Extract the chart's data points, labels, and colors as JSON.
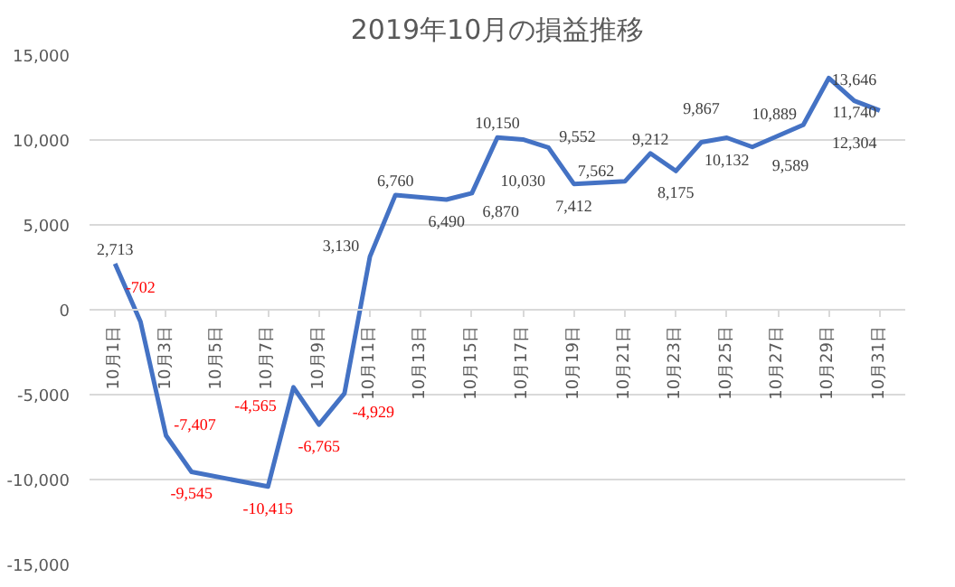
{
  "chart_data": {
    "type": "line",
    "title": "2019年10月の損益推移",
    "x": [
      "2019-10-01",
      "2019-10-02",
      "2019-10-03",
      "2019-10-04",
      "2019-10-07",
      "2019-10-08",
      "2019-10-09",
      "2019-10-10",
      "2019-10-11",
      "2019-10-12",
      "2019-10-14",
      "2019-10-15",
      "2019-10-16",
      "2019-10-17",
      "2019-10-18",
      "2019-10-19",
      "2019-10-21",
      "2019-10-22",
      "2019-10-23",
      "2019-10-24",
      "2019-10-25",
      "2019-10-26",
      "2019-10-28",
      "2019-10-29",
      "2019-10-30",
      "2019-10-31"
    ],
    "series": [
      {
        "color": "#4472c4",
        "values": [
          2713,
          -702,
          -7407,
          -9545,
          -10415,
          -4565,
          -6765,
          -4929,
          3130,
          6760,
          6490,
          6870,
          10150,
          10030,
          9552,
          7412,
          7562,
          9212,
          8175,
          9867,
          10132,
          9589,
          10889,
          13646,
          12304,
          11740
        ],
        "value_labels": [
          "2,713",
          "-702",
          "-7,407",
          "-9,545",
          "-10,415",
          "-4,565",
          "-6,765",
          "-4,929",
          "3,130",
          "6,760",
          "6,490",
          "6,870",
          "10,150",
          "10,030",
          "9,552",
          "7,412",
          "7,562",
          "9,212",
          "8,175",
          "9,867",
          "10,132",
          "9,589",
          "10,889",
          "13,646",
          "12,304",
          "11,740"
        ]
      }
    ],
    "xlim": [
      "2019-09-30",
      "2019-11-01"
    ],
    "xticks": [
      {
        "value": "2019-10-01",
        "label": "10月1日"
      },
      {
        "value": "2019-10-03",
        "label": "10月3日"
      },
      {
        "value": "2019-10-05",
        "label": "10月5日"
      },
      {
        "value": "2019-10-07",
        "label": "10月7日"
      },
      {
        "value": "2019-10-09",
        "label": "10月9日"
      },
      {
        "value": "2019-10-11",
        "label": "10月11日"
      },
      {
        "value": "2019-10-13",
        "label": "10月13日"
      },
      {
        "value": "2019-10-15",
        "label": "10月15日"
      },
      {
        "value": "2019-10-17",
        "label": "10月17日"
      },
      {
        "value": "2019-10-19",
        "label": "10月19日"
      },
      {
        "value": "2019-10-21",
        "label": "10月21日"
      },
      {
        "value": "2019-10-23",
        "label": "10月23日"
      },
      {
        "value": "2019-10-25",
        "label": "10月25日"
      },
      {
        "value": "2019-10-27",
        "label": "10月27日"
      },
      {
        "value": "2019-10-29",
        "label": "10月29日"
      },
      {
        "value": "2019-10-31",
        "label": "10月31日"
      }
    ],
    "ylim": [
      -15000,
      15000
    ],
    "yticks": [
      {
        "value": -15000,
        "label": "-15,000"
      },
      {
        "value": -10000,
        "label": "-10,000"
      },
      {
        "value": -5000,
        "label": "-5,000"
      },
      0,
      {
        "value": 5000,
        "label": "5,000"
      },
      {
        "value": 10000,
        "label": "10,000"
      },
      {
        "value": 15000,
        "label": "15,000"
      }
    ],
    "grid": "y",
    "marker": "none",
    "line_style": "solid"
  }
}
